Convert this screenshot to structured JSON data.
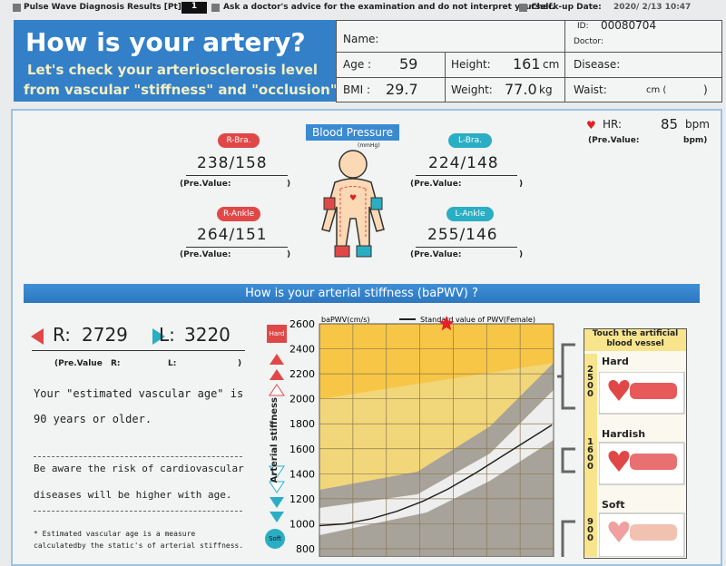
{
  "header": {
    "report_title": "Pulse Wave Diagnosis Results [Pt]",
    "pt_number": "1",
    "notice": "Ask a doctor's advice for the examination and do not interpret yourself.",
    "date_label": "Check-up Date:",
    "date": "2020/ 2/13 10:47"
  },
  "title_box": {
    "title": "How is your artery?",
    "line1": "Let's check your arteriosclerosis level",
    "line2": "from vascular \"stiffness\" and \"occlusion\"."
  },
  "patient": {
    "name_label": "Name:",
    "id_label": "ID:",
    "id": "00080704",
    "doctor_label": "Doctor:",
    "age_label": "Age :",
    "age": "59",
    "height_label": "Height:",
    "height": "161",
    "height_unit": "cm",
    "disease_label": "Disease:",
    "bmi_label": "BMI :",
    "bmi": "29.7",
    "weight_label": "Weight:",
    "weight": "77.0",
    "weight_unit": "kg",
    "waist_label": "Waist:",
    "waist_unit": "cm (",
    "waist_close": ")"
  },
  "heart_rate": {
    "label": "HR:",
    "value": "85",
    "unit": "bpm",
    "pre_label": "(Pre.Value:",
    "pre_close": "bpm)"
  },
  "blood_pressure": {
    "title": "Blood Pressure",
    "unit": "(mmHg)",
    "sites": [
      {
        "label": "R-Bra.",
        "value": "238/158",
        "pre_label": "(Pre.Value:",
        "pre_close": ")"
      },
      {
        "label": "L-Bra.",
        "value": "224/148",
        "pre_label": "(Pre.Value:",
        "pre_close": ")"
      },
      {
        "label": "R-Ankle",
        "value": "264/151",
        "pre_label": "(Pre.Value:",
        "pre_close": ")"
      },
      {
        "label": "L-Ankle",
        "value": "255/146",
        "pre_label": "(Pre.Value:",
        "pre_close": ")"
      }
    ]
  },
  "banner": "How is your arterial stiffness (baPWV) ?",
  "pwv": {
    "r_label": "R:",
    "r_value": "2729",
    "l_label": "L:",
    "l_value": "3220",
    "pre_label": "(Pre.Value",
    "pre_r": "R:",
    "pre_l": "L:",
    "pre_close": ")"
  },
  "assessment": {
    "line1": "Your \"estimated vascular age\" is",
    "line2": "90 years or older.",
    "warning1": "Be aware the risk of cardiovascular",
    "warning2": "diseases will be higher with age.",
    "note1": "* Estimated vascular age is a measure",
    "note2": "calculatedby the static's of arterial stiffness."
  },
  "scale": {
    "hard": "Hard",
    "axis": "Arterial stiffness",
    "soft": "Soft"
  },
  "stiffness_chart": {
    "type": "line",
    "y_label": "baPWV(cm/s)",
    "ylim": [
      800,
      2600
    ],
    "yticks": [
      800,
      1000,
      1200,
      1400,
      1600,
      1800,
      2000,
      2200,
      2400,
      2600
    ],
    "series": [
      {
        "name": "Standard value of PWV(Female)",
        "color": "#222222",
        "values": [
          985,
          1000,
          1040,
          1100,
          1180,
          1280,
          1400,
          1530,
          1660,
          1790
        ]
      }
    ],
    "marker": {
      "value": 2600,
      "color": "#e8202a"
    }
  },
  "vessel_panel": {
    "title": "Touch the artificial blood vessel",
    "rows": [
      {
        "label": "Hard",
        "value": "2500"
      },
      {
        "label": "Hardish",
        "value": "1600"
      },
      {
        "label": "Soft",
        "value": "900"
      }
    ]
  }
}
